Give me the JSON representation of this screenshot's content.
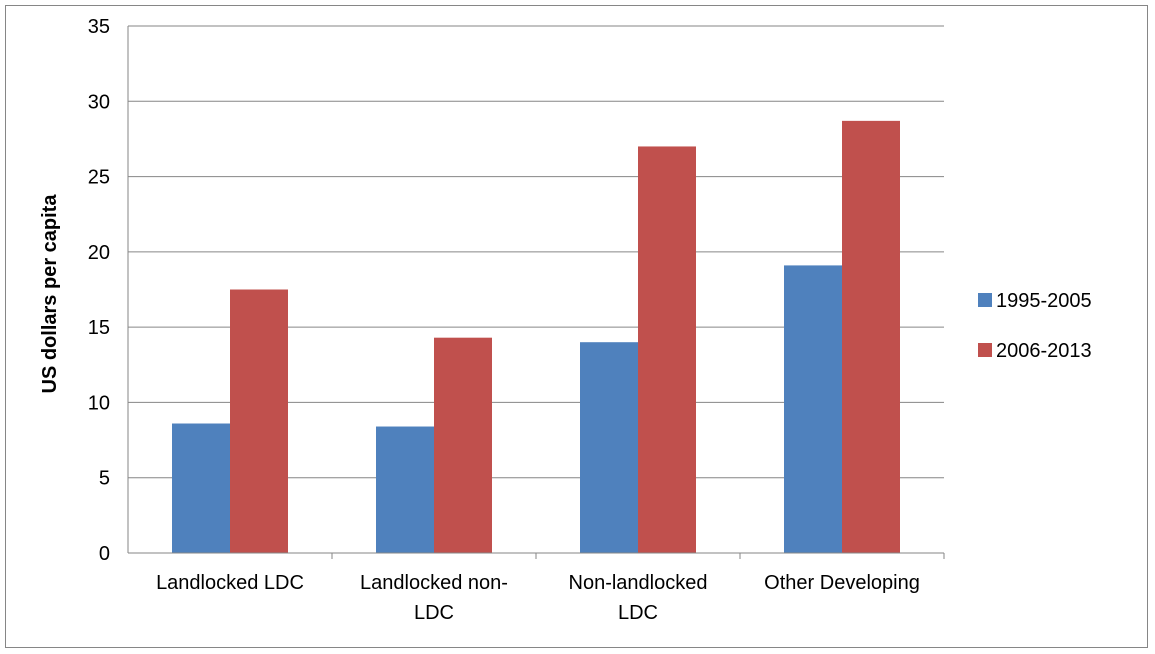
{
  "chart_data": {
    "type": "bar",
    "title": "",
    "xlabel": "",
    "ylabel": "US dollars per capita",
    "ylim": [
      0,
      35
    ],
    "yticks": [
      0,
      5,
      10,
      15,
      20,
      25,
      30,
      35
    ],
    "grid": true,
    "legend_position": "right",
    "categories": [
      [
        "Landlocked LDC"
      ],
      [
        "Landlocked non-",
        "LDC"
      ],
      [
        "Non-landlocked",
        "LDC"
      ],
      [
        "Other Developing"
      ]
    ],
    "series": [
      {
        "name": "1995-2005",
        "color": "#4F81BD",
        "values": [
          8.6,
          8.4,
          14.0,
          19.1
        ]
      },
      {
        "name": "2006-2013",
        "color": "#C0504D",
        "values": [
          17.5,
          14.3,
          27.0,
          28.7
        ]
      }
    ]
  }
}
